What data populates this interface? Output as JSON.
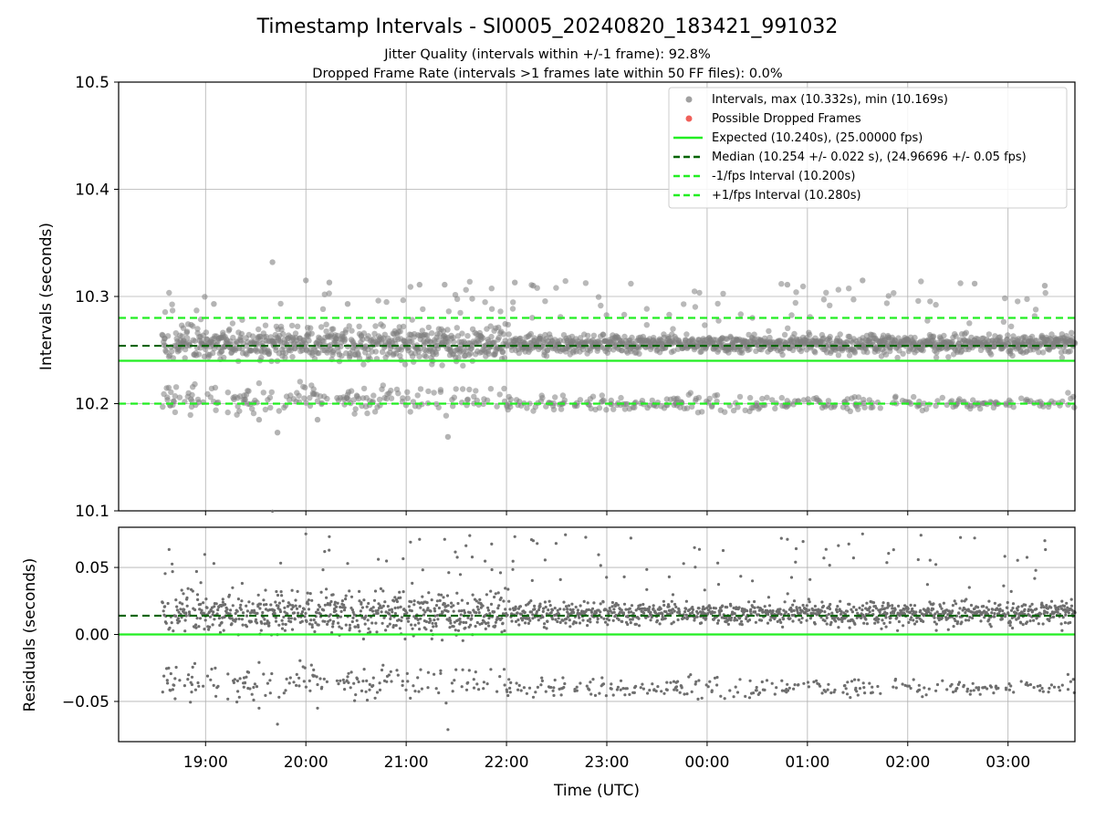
{
  "chart_data": {
    "type": "scatter",
    "title": "Timestamp Intervals - SI0005_20240820_183421_991032",
    "subtitle_lines": [
      "Jitter Quality (intervals within +/-1 frame): 92.8%",
      "Dropped Frame Rate (intervals >1 frames late within 50 FF files): 0.0%"
    ],
    "time_axis": {
      "label": "Time (UTC)",
      "start": "2024-08-20T18:08",
      "end": "2024-08-21T03:40",
      "ticks": [
        "19:00",
        "20:00",
        "21:00",
        "22:00",
        "23:00",
        "00:00",
        "01:00",
        "02:00",
        "03:00"
      ],
      "tick_times": [
        "2024-08-20T19:00",
        "2024-08-20T20:00",
        "2024-08-20T21:00",
        "2024-08-20T22:00",
        "2024-08-20T23:00",
        "2024-08-21T00:00",
        "2024-08-21T01:00",
        "2024-08-21T02:00",
        "2024-08-21T03:00"
      ],
      "data_start": "2024-08-20T18:34",
      "data_end": "2024-08-21T03:40"
    },
    "panels": [
      {
        "id": "intervals",
        "ylabel": "Intervals (seconds)",
        "ylim": [
          10.1,
          10.5
        ],
        "yticks": [
          "10.1",
          "10.2",
          "10.3",
          "10.4",
          "10.5"
        ],
        "grid": true,
        "legend_position": "upper-right",
        "series": [
          {
            "name": "Intervals, max (10.332s), min (10.169s)",
            "kind": "scatter",
            "color": "#808080",
            "max": 10.332,
            "min": 10.169,
            "clusters": [
              10.256,
              10.2
            ],
            "sampled": [
              {
                "time": "2024-08-20T19:40",
                "value": 10.332
              },
              {
                "time": "2024-08-20T19:05",
                "value": 10.293
              },
              {
                "time": "2024-08-20T20:00",
                "value": 10.315
              },
              {
                "time": "2024-08-20T20:14",
                "value": 10.313
              },
              {
                "time": "2024-08-20T20:25",
                "value": 10.293
              },
              {
                "time": "2024-08-20T21:08",
                "value": 10.311
              },
              {
                "time": "2024-08-20T21:23",
                "value": 10.311
              },
              {
                "time": "2024-08-20T22:05",
                "value": 10.313
              },
              {
                "time": "2024-08-20T22:16",
                "value": 10.31
              },
              {
                "time": "2024-08-21T00:48",
                "value": 10.311
              },
              {
                "time": "2024-08-21T01:33",
                "value": 10.315
              },
              {
                "time": "2024-08-21T02:40",
                "value": 10.312
              },
              {
                "time": "2024-08-21T03:22",
                "value": 10.31
              },
              {
                "time": "2024-08-20T19:43",
                "value": 10.173
              },
              {
                "time": "2024-08-20T21:25",
                "value": 10.169
              },
              {
                "time": "2024-08-20T20:07",
                "value": 10.185
              },
              {
                "time": "2024-08-20T19:32",
                "value": 10.185
              }
            ]
          },
          {
            "name": "Possible Dropped Frames",
            "kind": "scatter",
            "color": "#f0605a",
            "values": []
          },
          {
            "name": "Expected (10.240s), (25.00000 fps)",
            "kind": "hline",
            "value": 10.24,
            "color": "#22ee22",
            "dash": "solid"
          },
          {
            "name": "Median (10.254 +/- 0.022 s), (24.96696 +/- 0.05 fps)",
            "kind": "hline",
            "value": 10.254,
            "color": "#006400",
            "dash": "dashed"
          },
          {
            "name": "-1/fps Interval (10.200s)",
            "kind": "hline",
            "value": 10.2,
            "color": "#22ee22",
            "dash": "dashed"
          },
          {
            "name": "+1/fps Interval (10.280s)",
            "kind": "hline",
            "value": 10.28,
            "color": "#22ee22",
            "dash": "dashed"
          }
        ]
      },
      {
        "id": "residuals",
        "ylabel": "Residuals (seconds)",
        "ylim": [
          -0.08,
          0.08
        ],
        "yticks": [
          "−0.05",
          "0.00",
          "0.05"
        ],
        "ytick_values": [
          -0.05,
          0.0,
          0.05
        ],
        "grid": true,
        "series": [
          {
            "kind": "scatter",
            "color": "#6e6e6e",
            "clusters": [
              0.016,
              -0.04
            ],
            "max": 0.079,
            "min": -0.071
          },
          {
            "kind": "hline",
            "value": 0.0,
            "color": "#22ee22",
            "dash": "solid"
          },
          {
            "kind": "hline",
            "value": 0.014,
            "color": "#006400",
            "dash": "dashed"
          }
        ]
      }
    ]
  }
}
